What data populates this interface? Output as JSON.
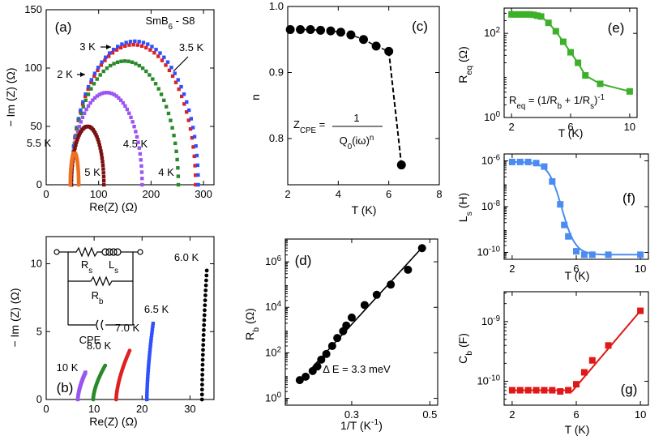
{
  "figure": {
    "colors": {
      "2K": "#2a8a2a",
      "3K": "#e02020",
      "3.5K": "#3050ff",
      "4.5K": "#9b55f0",
      "5K": "#7a1010",
      "5.5K": "#f07020",
      "black": "#000000",
      "green": "#3cb028",
      "blue": "#4a8cf0",
      "red": "#e01818"
    }
  },
  "chart_data": [
    {
      "id": "a",
      "type": "scatter",
      "panel_label": "(a)",
      "subtitle": "SmB6 - S8",
      "subtitle_main": "SmB",
      "subtitle_sub": "6",
      "subtitle_tail": " - S8",
      "xlabel": "Re(Z)  (Ω)",
      "ylabel": "− Im (Z) (Ω)",
      "xlim": [
        0,
        320
      ],
      "ylim": [
        0,
        150
      ],
      "xticks": [
        "0",
        "100",
        "200",
        "300"
      ],
      "yticks": [
        "0",
        "50",
        "100",
        "150"
      ],
      "xtick_values": [
        0,
        100,
        200,
        300
      ],
      "ytick_values": [
        0,
        50,
        100,
        150
      ],
      "series": [
        {
          "name": "2 K",
          "color": "#2a8a2a",
          "r0": 48,
          "r1": 252,
          "peak": 106
        },
        {
          "name": "3 K",
          "color": "#e02020",
          "r0": 48,
          "r1": 285,
          "peak": 120
        },
        {
          "name": "3.5 K",
          "color": "#3050ff",
          "r0": 48,
          "r1": 290,
          "peak": 123
        },
        {
          "name": "4 K",
          "color": "#2a8a2a",
          "r0": 48,
          "r1": 252,
          "peak": 106
        },
        {
          "name": "4.5 K",
          "color": "#9b55f0",
          "r0": 48,
          "r1": 183,
          "peak": 79
        },
        {
          "name": "5 K",
          "color": "#7a1010",
          "r0": 48,
          "r1": 110,
          "peak": 50
        },
        {
          "name": "5.5 K",
          "color": "#f07020",
          "r0": 46,
          "r1": 62,
          "peak": 27
        }
      ],
      "labels": [
        "2 K",
        "3 K",
        "3.5 K",
        "4.5 K",
        "5.5 K",
        "5 K",
        "4 K"
      ]
    },
    {
      "id": "b",
      "type": "scatter",
      "panel_label": "(b)",
      "xlabel": "Re(Z)  (Ω)",
      "ylabel": "− Im (Z) (Ω)",
      "xlim": [
        0,
        35
      ],
      "ylim": [
        0,
        12
      ],
      "xticks": [
        "0",
        "10",
        "20",
        "30"
      ],
      "yticks": [
        "0",
        "5",
        "10"
      ],
      "xtick_values": [
        0,
        10,
        20,
        30
      ],
      "ytick_values": [
        0,
        5,
        10
      ],
      "series": [
        {
          "name": "10 K",
          "color": "#9b55f0",
          "x0": 6.6,
          "x1": 8.2,
          "ymax": 2.0
        },
        {
          "name": "8.0 K",
          "color": "#2a8a2a",
          "x0": 9.8,
          "x1": 12.3,
          "ymax": 2.5
        },
        {
          "name": "7.0 K",
          "color": "#e02020",
          "x0": 14.6,
          "x1": 17.4,
          "ymax": 3.6
        },
        {
          "name": "6.5 K",
          "color": "#3050ff",
          "x0": 21.0,
          "x1": 22.3,
          "ymax": 5.6
        },
        {
          "name": "6.0 K",
          "color": "#000000",
          "x0": 32.5,
          "x1": 33.5,
          "ymax": 9.5
        }
      ],
      "circuit_labels": {
        "rs_main": "R",
        "rs_sub": "s",
        "ls_main": "L",
        "ls_sub": "s",
        "rb_main": "R",
        "rb_sub": "b",
        "cpe": "CPE"
      }
    },
    {
      "id": "c",
      "type": "scatter",
      "panel_label": "(c)",
      "xlabel": "T (K)",
      "ylabel": "n",
      "xlim": [
        2,
        8
      ],
      "ylim": [
        0.73,
        1.0
      ],
      "xticks": [
        "2",
        "4",
        "6",
        "8"
      ],
      "yticks": [
        "0.8",
        "0.9",
        "1.0"
      ],
      "xtick_values": [
        2,
        4,
        6,
        8
      ],
      "ytick_values": [
        0.8,
        0.9,
        1.0
      ],
      "x": [
        2.1,
        2.5,
        2.9,
        3.3,
        3.7,
        4.1,
        4.5,
        5.0,
        5.5,
        6.0,
        6.5
      ],
      "y": [
        0.965,
        0.965,
        0.965,
        0.964,
        0.963,
        0.961,
        0.957,
        0.95,
        0.94,
        0.932,
        0.76
      ],
      "formula": {
        "lhs_main": "Z",
        "lhs_sub": "CPE",
        "eq": " = ",
        "num": "1",
        "den_main": "Q",
        "den_sub": "0",
        "den_tail": "(iω)",
        "den_sup": "n"
      }
    },
    {
      "id": "d",
      "type": "scatter",
      "panel_label": "(d)",
      "scale": "log-y",
      "xlabel": "1/T (K⁻¹)",
      "ylabel": "R_b (Ω)",
      "xlabel_main": "1/T (K",
      "xlabel_sup": "-1",
      "xlabel_tail": ")",
      "ylabel_main": "R",
      "ylabel_sub": "b",
      "ylabel_tail": " (Ω)",
      "xlim": [
        0.13,
        0.52
      ],
      "ylim_exp": [
        -0.3,
        7
      ],
      "xticks": [
        "0.3",
        "0.5"
      ],
      "xtick_values": [
        0.3,
        0.5
      ],
      "yticks_exp": [
        0,
        2,
        4,
        6
      ],
      "ytick_base": "10",
      "x": [
        0.167,
        0.182,
        0.2,
        0.212,
        0.222,
        0.235,
        0.25,
        0.263,
        0.278,
        0.286,
        0.3,
        0.333,
        0.364,
        0.4,
        0.444,
        0.48
      ],
      "log10_y": [
        0.8,
        0.95,
        1.2,
        1.4,
        1.7,
        1.95,
        2.3,
        2.65,
        2.95,
        3.2,
        3.55,
        4.1,
        4.55,
        5.0,
        5.65,
        6.6
      ],
      "fit_label": "Δ E = 3.3 meV"
    },
    {
      "id": "e",
      "type": "scatter",
      "panel_label": "(e)",
      "scale": "log-y",
      "xlabel": "T (K)",
      "ylabel": "R_eq (Ω)",
      "ylabel_main": "R",
      "ylabel_sub": "eq",
      "ylabel_tail": " (Ω)",
      "xlim": [
        1.5,
        10.5
      ],
      "ylim_exp": [
        0,
        2.6
      ],
      "xticks": [
        "2",
        "6",
        "10"
      ],
      "xtick_values": [
        2,
        6,
        10
      ],
      "yticks_exp": [
        0,
        2
      ],
      "ytick_base": "10",
      "x": [
        2.0,
        2.25,
        2.5,
        2.75,
        3.0,
        3.25,
        3.5,
        3.75,
        4.0,
        4.5,
        5.0,
        5.5,
        6.0,
        6.5,
        7.0,
        8.0,
        10.0
      ],
      "log10_y": [
        2.45,
        2.45,
        2.45,
        2.45,
        2.45,
        2.45,
        2.44,
        2.42,
        2.4,
        2.25,
        2.05,
        1.8,
        1.55,
        1.3,
        1.0,
        0.8,
        0.62
      ],
      "formula": {
        "lhs_main": "R",
        "lhs_sub": "eq",
        "mid1": " = (1/R",
        "sub1": "b",
        "mid2": " + 1/R",
        "sub2": "s",
        "mid3": ")",
        "sup": "-1"
      }
    },
    {
      "id": "f",
      "type": "scatter",
      "panel_label": "(f)",
      "scale": "log-y",
      "xlabel": "T (K)",
      "ylabel": "L_s (H)",
      "ylabel_main": "L",
      "ylabel_sub": "s",
      "ylabel_tail": " (H)",
      "xlim": [
        1.5,
        10.5
      ],
      "ylim_exp": [
        -10.3,
        -5.7
      ],
      "xticks": [
        "2",
        "6",
        "10"
      ],
      "xtick_values": [
        2,
        6,
        10
      ],
      "yticks_exp": [
        -10,
        -8,
        -6
      ],
      "ytick_base": "10",
      "x": [
        2.0,
        2.5,
        3.0,
        3.5,
        4.0,
        4.5,
        5.0,
        5.25,
        5.5,
        6.0,
        6.5,
        7.0,
        8.0,
        10.0
      ],
      "log10_y": [
        -6.05,
        -6.05,
        -6.05,
        -6.1,
        -6.25,
        -6.9,
        -7.9,
        -8.8,
        -9.3,
        -9.95,
        -10.1,
        -10.1,
        -10.1,
        -10.1
      ]
    },
    {
      "id": "g",
      "type": "scatter",
      "panel_label": "(g)",
      "scale": "log-y",
      "xlabel": "T (K)",
      "ylabel": "C_b (F)",
      "ylabel_main": "C",
      "ylabel_sub": "b",
      "ylabel_tail": " (F)",
      "xlim": [
        1.5,
        10.5
      ],
      "ylim_exp": [
        -10.4,
        -8.5
      ],
      "xticks": [
        "2",
        "6",
        "10"
      ],
      "xtick_values": [
        2,
        6,
        10
      ],
      "yticks_exp": [
        -10,
        -9
      ],
      "ytick_base": "10",
      "x": [
        2.0,
        2.5,
        3.0,
        3.5,
        4.0,
        4.5,
        5.0,
        5.5,
        6.0,
        6.5,
        7.0,
        8.0,
        10.0
      ],
      "log10_y": [
        -10.15,
        -10.15,
        -10.15,
        -10.15,
        -10.15,
        -10.15,
        -10.17,
        -10.15,
        -10.05,
        -9.85,
        -9.65,
        -9.4,
        -8.82
      ]
    }
  ]
}
